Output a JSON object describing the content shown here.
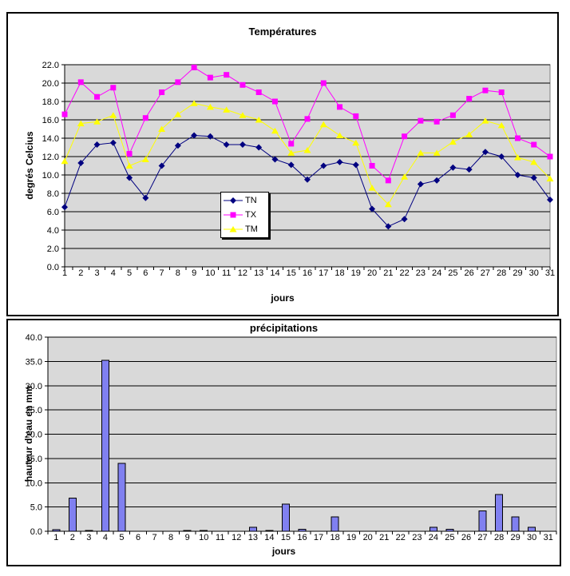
{
  "chart_data": [
    {
      "type": "line",
      "title": "Températures",
      "xlabel": "jours",
      "ylabel": "degrés Celcius",
      "ylim": [
        0,
        22
      ],
      "ytick_step": 2,
      "grid": true,
      "plot_bg": "#D9D9D9",
      "legend_position": "inside-left-middle",
      "categories": [
        1,
        2,
        3,
        4,
        5,
        6,
        7,
        8,
        9,
        10,
        11,
        12,
        13,
        14,
        15,
        16,
        17,
        18,
        19,
        20,
        21,
        22,
        23,
        24,
        25,
        26,
        27,
        28,
        29,
        30,
        31
      ],
      "series": [
        {
          "name": "TN",
          "marker": "diamond",
          "color": "#000080",
          "values": [
            6.5,
            11.3,
            13.3,
            13.5,
            9.7,
            7.5,
            11.0,
            13.2,
            14.3,
            14.2,
            13.3,
            13.3,
            13.0,
            11.7,
            11.1,
            9.5,
            11.0,
            11.4,
            11.1,
            6.3,
            4.4,
            5.2,
            9.0,
            9.4,
            10.8,
            10.6,
            12.5,
            12.0,
            10.0,
            9.7,
            7.3
          ]
        },
        {
          "name": "TX",
          "marker": "square",
          "color": "#FF00FF",
          "values": [
            16.6,
            20.1,
            18.5,
            19.5,
            12.3,
            16.2,
            19.0,
            20.1,
            21.7,
            20.6,
            20.9,
            19.8,
            19.0,
            18.0,
            13.4,
            16.1,
            20.0,
            17.4,
            16.4,
            11.0,
            9.4,
            14.2,
            15.9,
            15.8,
            16.5,
            18.3,
            19.2,
            19.0,
            14.0,
            13.3,
            12.0
          ]
        },
        {
          "name": "TM",
          "marker": "triangle",
          "color": "#FFFF00",
          "values": [
            11.5,
            15.6,
            15.8,
            16.5,
            11.0,
            11.7,
            15.0,
            16.6,
            17.8,
            17.4,
            17.1,
            16.5,
            16.0,
            14.8,
            12.4,
            12.7,
            15.5,
            14.3,
            13.5,
            8.6,
            6.8,
            9.8,
            12.4,
            12.4,
            13.6,
            14.4,
            15.9,
            15.4,
            11.9,
            11.4,
            9.6
          ]
        }
      ]
    },
    {
      "type": "bar",
      "title": "précipitations",
      "xlabel": "jours",
      "ylabel": "hauteur d'eau en mm",
      "ylim": [
        0,
        40
      ],
      "ytick_step": 5,
      "grid": true,
      "plot_bg": "#D9D9D9",
      "bar_color": "#8080F0",
      "bar_border_color": "#000000",
      "categories": [
        1,
        2,
        3,
        4,
        5,
        6,
        7,
        8,
        9,
        10,
        11,
        12,
        13,
        14,
        15,
        16,
        17,
        18,
        19,
        20,
        21,
        22,
        23,
        24,
        25,
        26,
        27,
        28,
        29,
        30,
        31
      ],
      "values": [
        0.3,
        6.8,
        0.2,
        35.2,
        14.0,
        0,
        0,
        0,
        0.2,
        0.2,
        0,
        0,
        0.8,
        0.2,
        5.6,
        0.4,
        0,
        3.0,
        0,
        0,
        0,
        0,
        0,
        0.8,
        0.4,
        0,
        4.2,
        7.6,
        3.0,
        0.8,
        0
      ]
    }
  ]
}
